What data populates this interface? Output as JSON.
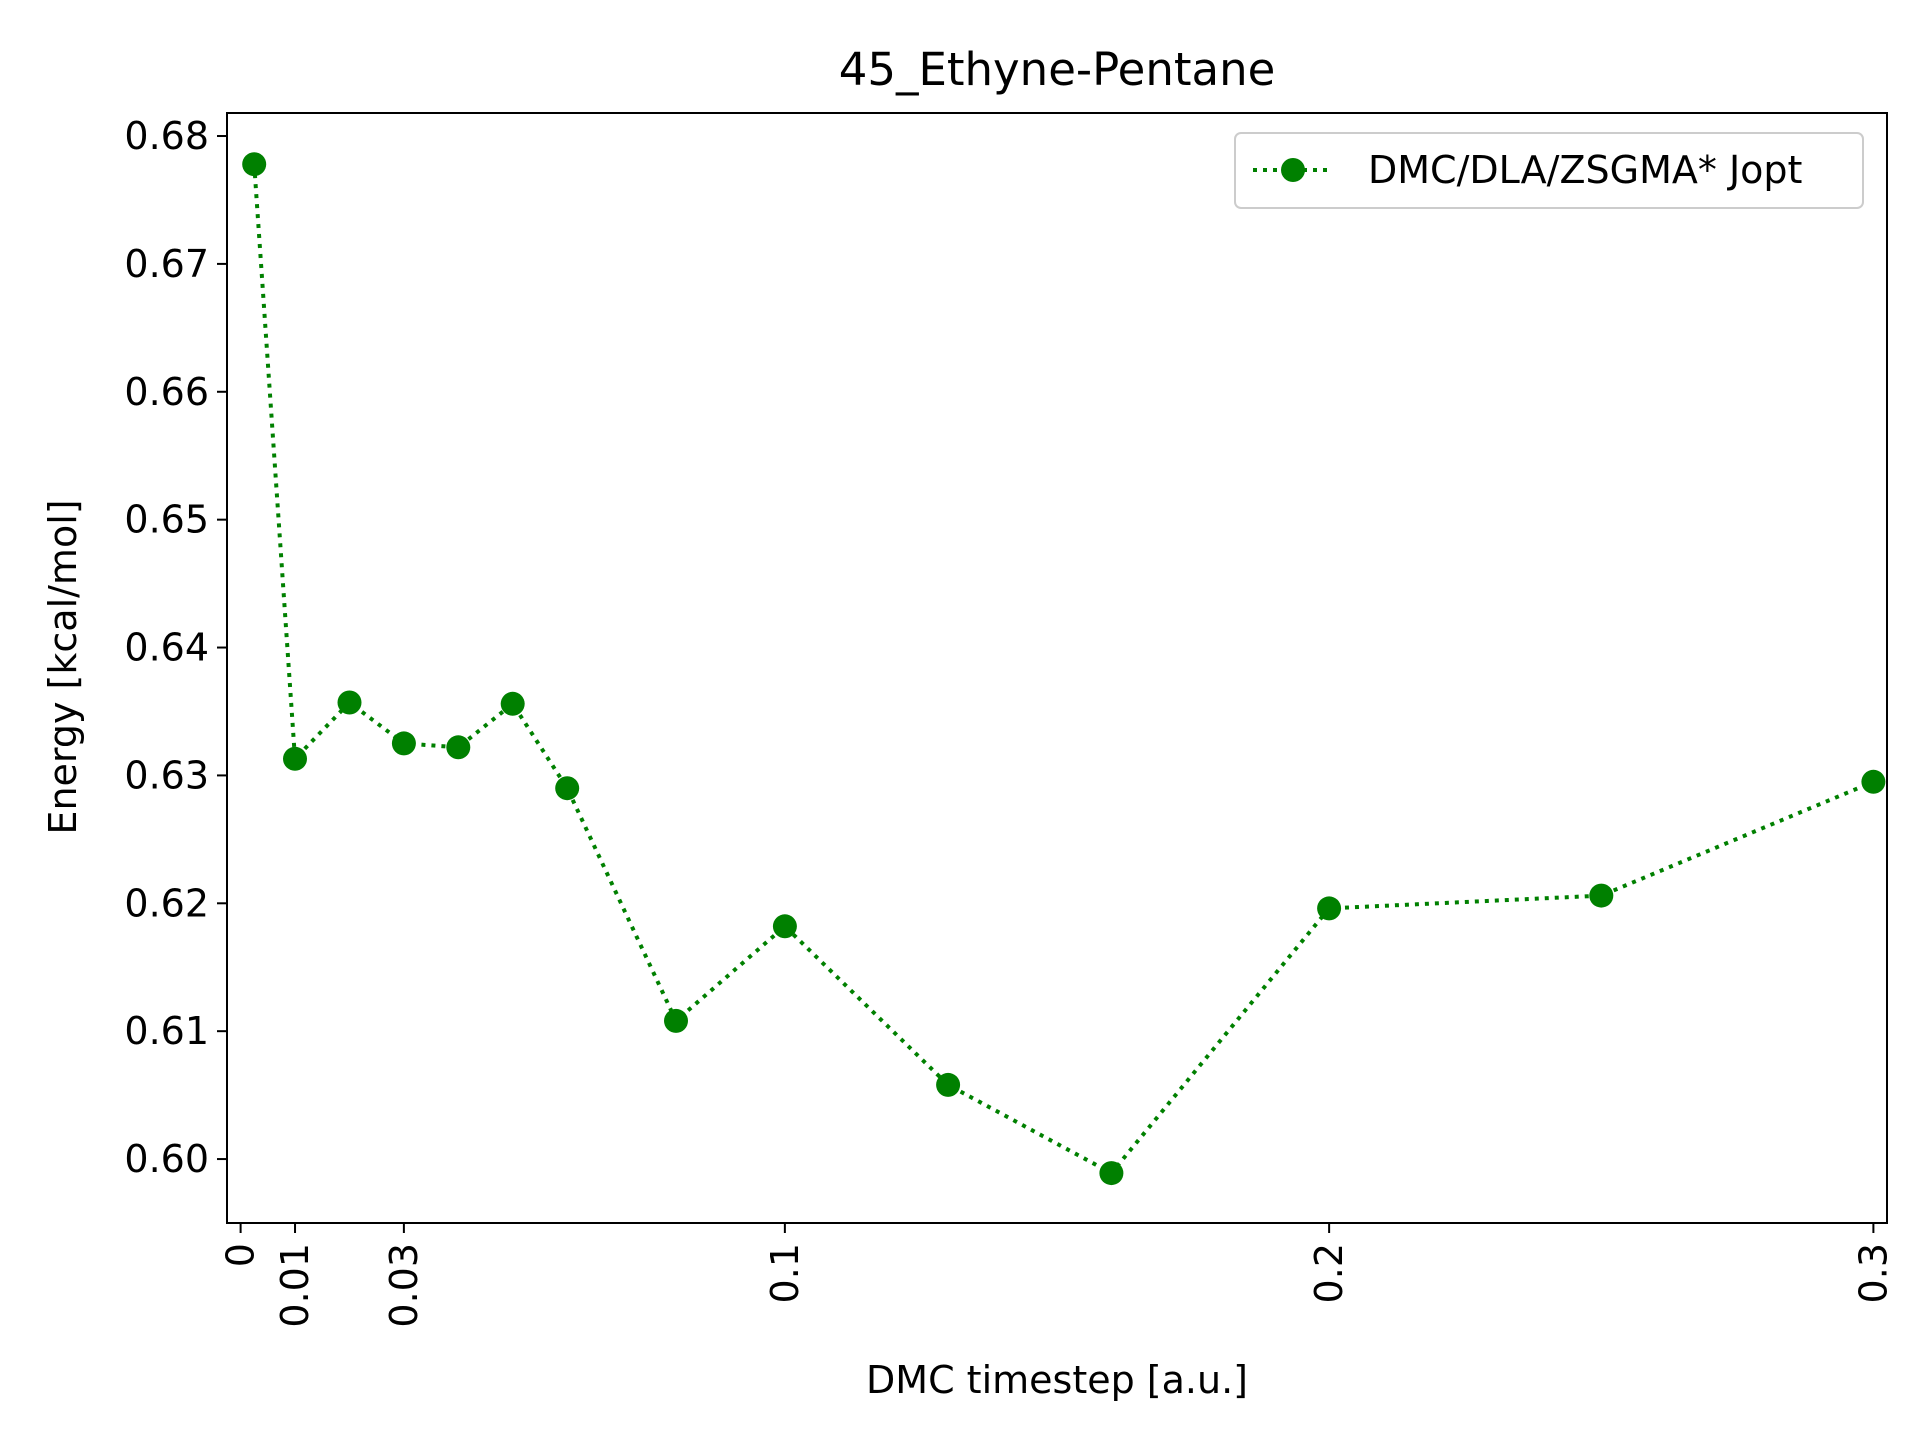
{
  "chart_data": {
    "type": "line",
    "title": "45_Ethyne-Pentane",
    "xlabel": "DMC timestep [a.u.]",
    "ylabel": "Energy [kcal/mol]",
    "xlim": [
      -0.0025,
      0.3025
    ],
    "ylim": [
      0.595,
      0.6818
    ],
    "xticks": [
      0,
      0.01,
      0.03,
      0.1,
      0.2,
      0.3
    ],
    "xtick_labels": [
      "0",
      "0.01",
      "0.03",
      "0.1",
      "0.2",
      "0.3"
    ],
    "yticks": [
      0.6,
      0.61,
      0.62,
      0.63,
      0.64,
      0.65,
      0.66,
      0.67,
      0.68
    ],
    "ytick_labels": [
      "0.60",
      "0.61",
      "0.62",
      "0.63",
      "0.64",
      "0.65",
      "0.66",
      "0.67",
      "0.68"
    ],
    "grid": false,
    "legend_position": "top-right",
    "series": [
      {
        "name": "DMC/DLA/ZSGMA* Jopt",
        "color": "#008000",
        "line_style": "dotted",
        "marker": "circle",
        "x": [
          0.0025,
          0.01,
          0.02,
          0.03,
          0.04,
          0.05,
          0.06,
          0.08,
          0.1,
          0.13,
          0.16,
          0.2,
          0.25,
          0.3
        ],
        "y": [
          0.6778,
          0.6313,
          0.6357,
          0.6325,
          0.6322,
          0.6356,
          0.629,
          0.6108,
          0.6182,
          0.6058,
          0.5989,
          0.6196,
          0.6206,
          0.6295
        ]
      }
    ]
  }
}
